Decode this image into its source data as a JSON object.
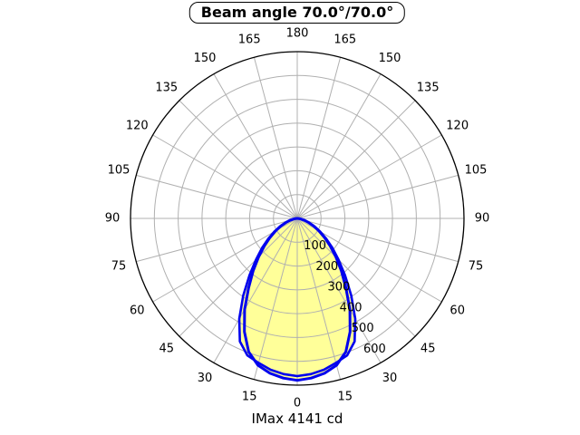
{
  "chart_data": {
    "type": "line",
    "subtype": "polar-photometric-distribution",
    "title": "Beam angle 70.0°/70.0°",
    "footer": "IMax 4141 cd",
    "imax_cd": 4141,
    "beam_angle_deg": [
      70.0,
      70.0
    ],
    "grid": true,
    "angle_ticks_deg": [
      0,
      15,
      30,
      45,
      60,
      75,
      90,
      105,
      120,
      135,
      150,
      165,
      180
    ],
    "radial_ticks": [
      100,
      200,
      300,
      400,
      500,
      600
    ],
    "r_max": 700,
    "colors": {
      "curve": "#0000ee",
      "fill": "#ffff99",
      "grid": "#b0b0b0",
      "outline": "#000000",
      "background": "#ffffff"
    },
    "series": [
      {
        "name": "beam-curve-1",
        "symmetric": true,
        "angle_step_deg": 5,
        "angles_deg": [
          0,
          5,
          10,
          15,
          20,
          25,
          30,
          35,
          40,
          45,
          50,
          55,
          60,
          65,
          70,
          75,
          80,
          85,
          90
        ],
        "values": [
          680,
          673,
          660,
          638,
          596,
          525,
          442,
          356,
          288,
          230,
          181,
          140,
          105,
          76,
          51,
          32,
          17,
          7,
          0
        ]
      },
      {
        "name": "beam-curve-2",
        "symmetric": true,
        "angle_step_deg": 5,
        "angles_deg": [
          0,
          5,
          10,
          15,
          20,
          25,
          30,
          35,
          40,
          45,
          50,
          55,
          60,
          65,
          70,
          75,
          80,
          85,
          90
        ],
        "values": [
          662,
          656,
          645,
          628,
          612,
          570,
          487,
          395,
          312,
          245,
          192,
          148,
          111,
          80,
          54,
          34,
          18,
          8,
          0
        ]
      }
    ]
  }
}
